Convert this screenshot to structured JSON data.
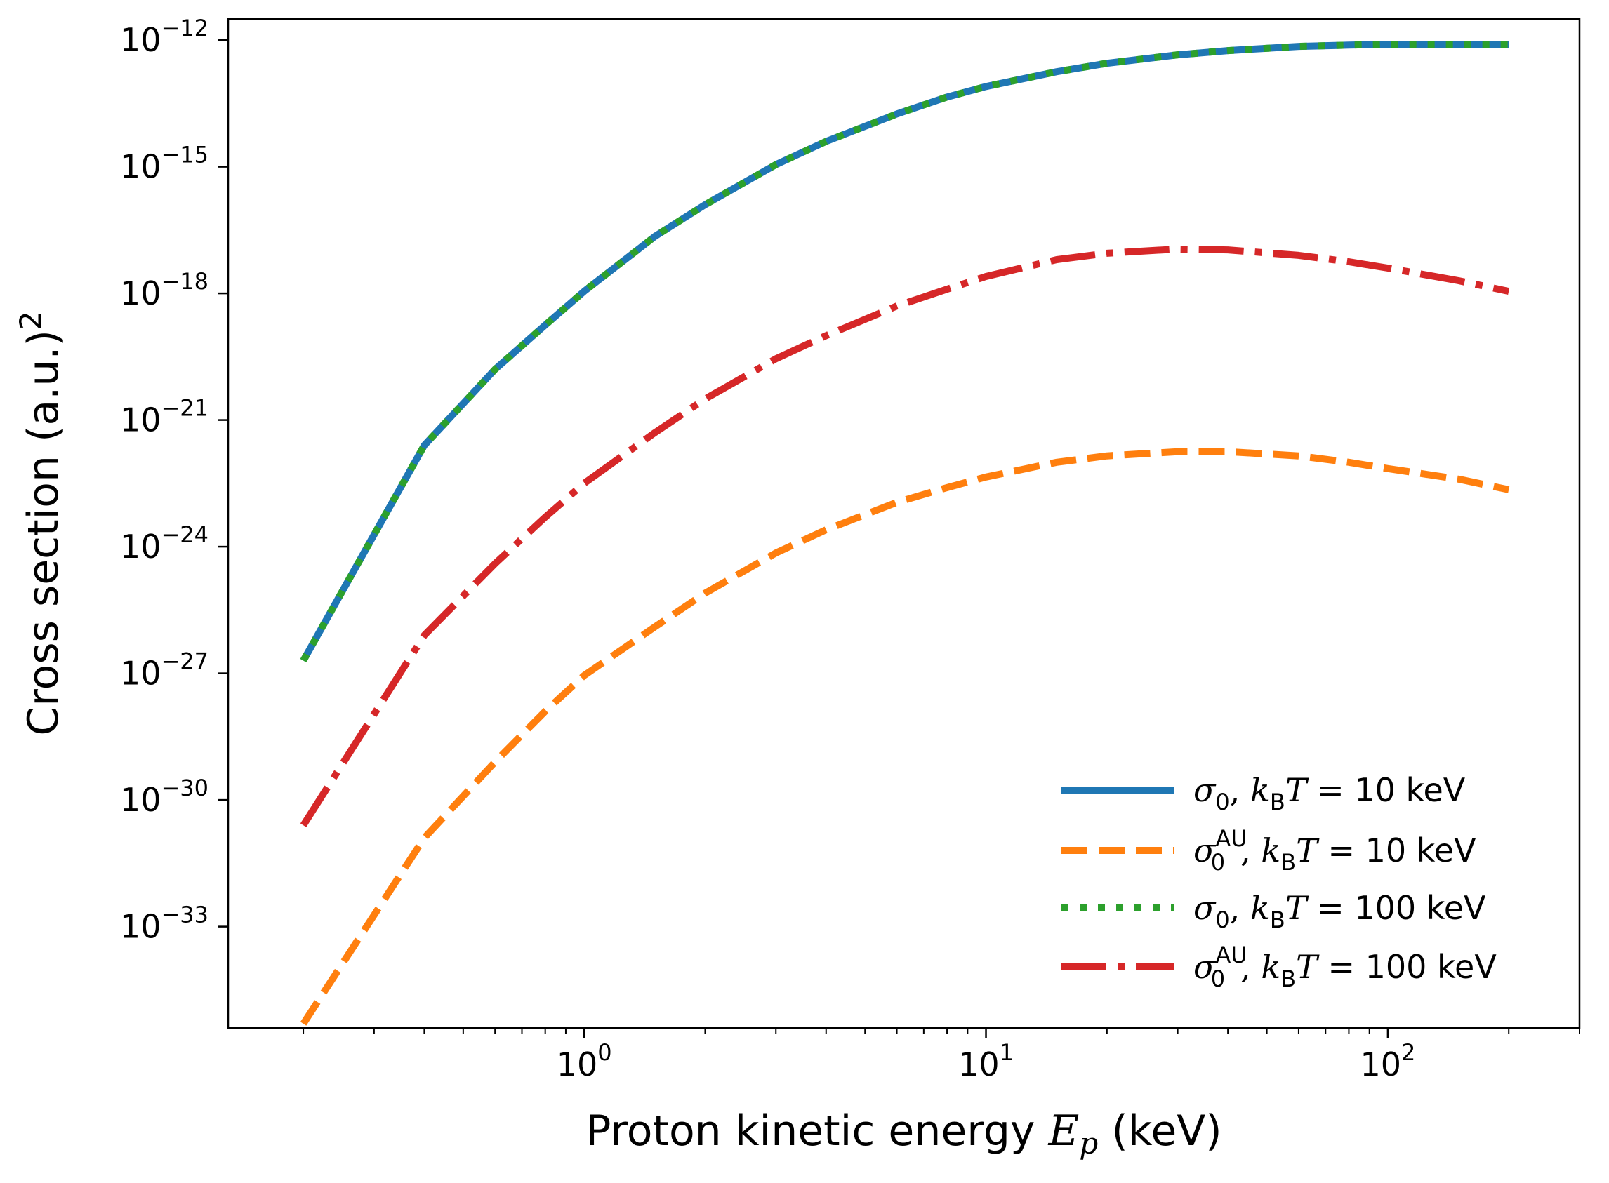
{
  "chart_data": {
    "type": "line",
    "title": "",
    "xlabel": "Proton kinetic energy E_p (keV)",
    "xlabel_parts": {
      "prefix": "Proton kinetic energy ",
      "var": "E",
      "sub": "p",
      "suffix": " (keV)"
    },
    "ylabel": "Cross section (a.u.)^2",
    "ylabel_parts": {
      "base": "Cross section (a.u.)",
      "sup": "2"
    },
    "xscale": "log",
    "yscale": "log",
    "xlim": [
      0.13,
      300
    ],
    "ylim_exp": [
      -35.4,
      -11.5
    ],
    "x_ticks": [
      {
        "base": "10",
        "exp": "0",
        "value": 1
      },
      {
        "base": "10",
        "exp": "1",
        "value": 10
      },
      {
        "base": "10",
        "exp": "2",
        "value": 100
      }
    ],
    "y_ticks": [
      {
        "base": "10",
        "exp": "−12",
        "value": -12
      },
      {
        "base": "10",
        "exp": "−15",
        "value": -15
      },
      {
        "base": "10",
        "exp": "−18",
        "value": -18
      },
      {
        "base": "10",
        "exp": "−21",
        "value": -21
      },
      {
        "base": "10",
        "exp": "−24",
        "value": -24
      },
      {
        "base": "10",
        "exp": "−27",
        "value": -27
      },
      {
        "base": "10",
        "exp": "−30",
        "value": -30
      },
      {
        "base": "10",
        "exp": "−33",
        "value": -33
      }
    ],
    "legend_position": "lower right",
    "series": [
      {
        "name": "σ0, kBT = 10 keV",
        "label": {
          "sym": "σ",
          "sub": "0",
          "sup": "",
          "k": "k",
          "ksub": "B",
          "T": "T",
          "rest": " = 10 keV"
        },
        "color": "#1f77b4",
        "style": "solid",
        "x": [
          0.2,
          0.4,
          0.6,
          0.8,
          1,
          1.5,
          2,
          3,
          4,
          6,
          8,
          10,
          15,
          20,
          30,
          40,
          60,
          80,
          100,
          150,
          200
        ],
        "y_exp": [
          -26.7,
          -21.6,
          -19.8,
          -18.75,
          -17.95,
          -16.65,
          -15.9,
          -14.95,
          -14.4,
          -13.75,
          -13.35,
          -13.1,
          -12.75,
          -12.55,
          -12.35,
          -12.25,
          -12.15,
          -12.12,
          -12.1,
          -12.1,
          -12.1
        ]
      },
      {
        "name": "σ0^AU, kBT = 10 keV",
        "label": {
          "sym": "σ",
          "sub": "0",
          "sup": "AU",
          "k": "k",
          "ksub": "B",
          "T": "T",
          "rest": " = 10 keV"
        },
        "color": "#ff7f0e",
        "style": "dashed",
        "x": [
          0.2,
          0.4,
          0.6,
          0.8,
          1,
          1.5,
          2,
          3,
          4,
          6,
          8,
          10,
          15,
          20,
          30,
          40,
          60,
          80,
          100,
          150,
          200
        ],
        "y_exp": [
          -35.3,
          -30.9,
          -29.1,
          -27.9,
          -27.05,
          -25.9,
          -25.1,
          -24.15,
          -23.6,
          -22.95,
          -22.6,
          -22.35,
          -22.0,
          -21.85,
          -21.75,
          -21.75,
          -21.85,
          -22.0,
          -22.15,
          -22.4,
          -22.65
        ]
      },
      {
        "name": "σ0, kBT = 100 keV",
        "label": {
          "sym": "σ",
          "sub": "0",
          "sup": "",
          "k": "k",
          "ksub": "B",
          "T": "T",
          "rest": " = 100 keV"
        },
        "color": "#2ca02c",
        "style": "dotted",
        "x": [
          0.2,
          0.4,
          0.6,
          0.8,
          1,
          1.5,
          2,
          3,
          4,
          6,
          8,
          10,
          15,
          20,
          30,
          40,
          60,
          80,
          100,
          150,
          200
        ],
        "y_exp": [
          -26.7,
          -21.6,
          -19.8,
          -18.75,
          -17.95,
          -16.65,
          -15.9,
          -14.95,
          -14.4,
          -13.75,
          -13.35,
          -13.1,
          -12.75,
          -12.55,
          -12.35,
          -12.25,
          -12.15,
          -12.12,
          -12.1,
          -12.1,
          -12.1
        ]
      },
      {
        "name": "σ0^AU, kBT = 100 keV",
        "label": {
          "sym": "σ",
          "sub": "0",
          "sup": "AU",
          "k": "k",
          "ksub": "B",
          "T": "T",
          "rest": " = 100 keV"
        },
        "color": "#d62728",
        "style": "dashdot",
        "x": [
          0.2,
          0.4,
          0.6,
          0.8,
          1,
          1.5,
          2,
          3,
          4,
          6,
          8,
          10,
          15,
          20,
          30,
          40,
          60,
          80,
          100,
          150,
          200
        ],
        "y_exp": [
          -30.6,
          -26.1,
          -24.4,
          -23.3,
          -22.5,
          -21.3,
          -20.5,
          -19.55,
          -19.0,
          -18.3,
          -17.9,
          -17.6,
          -17.2,
          -17.05,
          -16.95,
          -16.97,
          -17.1,
          -17.25,
          -17.4,
          -17.7,
          -17.95
        ]
      }
    ]
  }
}
